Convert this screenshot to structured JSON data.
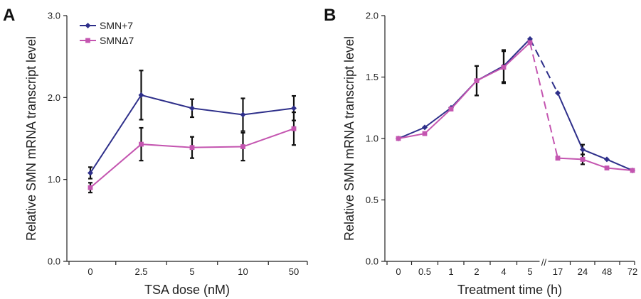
{
  "chart_data": [
    {
      "panel": "A",
      "type": "line",
      "xlabel": "TSA dose (nM)",
      "ylabel": "Relative SMN mRNA transcript level",
      "ylim": [
        0,
        3
      ],
      "yticks": [
        "0.0",
        "1.0",
        "2.0",
        "3.0"
      ],
      "categories": [
        "0",
        "2.5",
        "5",
        "10",
        "50"
      ],
      "legend": "top-left",
      "series": [
        {
          "name": "SMN+7",
          "color": "#2e2f8a",
          "marker": "diamond",
          "values": [
            1.08,
            2.03,
            1.87,
            1.79,
            1.87
          ],
          "errors": [
            0.07,
            0.3,
            0.11,
            0.2,
            0.15
          ]
        },
        {
          "name": "SMNΔ7",
          "color": "#c455b0",
          "marker": "square",
          "values": [
            0.9,
            1.43,
            1.39,
            1.4,
            1.62
          ],
          "errors": [
            0.06,
            0.2,
            0.13,
            0.17,
            0.2
          ]
        }
      ]
    },
    {
      "panel": "B",
      "type": "line",
      "xlabel": "Treatment time (h)",
      "ylabel": "Relative SMN mRNA transcript level",
      "ylim": [
        0,
        2
      ],
      "yticks": [
        "0.0",
        "0.5",
        "1.0",
        "1.5",
        "2.0"
      ],
      "categories": [
        "0",
        "0.5",
        "1",
        "2",
        "4",
        "5",
        "17",
        "24",
        "48",
        "72"
      ],
      "axis_break_between": [
        "5",
        "17"
      ],
      "axis_break_symbol": "//",
      "series": [
        {
          "name": "SMN+7",
          "color": "#2e2f8a",
          "marker": "diamond",
          "values": [
            1.0,
            1.09,
            1.25,
            1.47,
            1.59,
            1.81,
            1.37,
            0.91,
            0.83,
            0.74
          ],
          "errors": [
            0,
            0,
            0,
            0.12,
            0.13,
            0,
            0,
            0.04,
            0,
            0
          ]
        },
        {
          "name": "SMNΔ7",
          "color": "#c455b0",
          "marker": "square",
          "values": [
            1.0,
            1.04,
            1.24,
            1.47,
            1.58,
            1.78,
            0.84,
            0.83,
            0.76,
            0.74
          ],
          "errors": [
            0,
            0,
            0,
            0.12,
            0.13,
            0,
            0,
            0.04,
            0,
            0
          ]
        }
      ]
    }
  ]
}
